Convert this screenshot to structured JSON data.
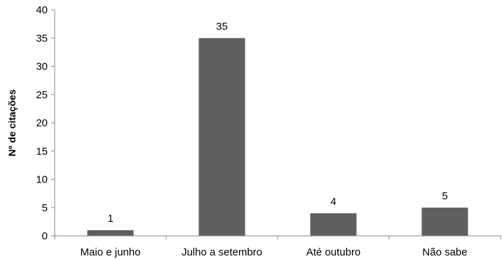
{
  "chart_data": {
    "type": "bar",
    "title": "",
    "xlabel": "",
    "ylabel": "Nº de citações",
    "ylim": [
      0,
      40
    ],
    "yticks": [
      0,
      5,
      10,
      15,
      20,
      25,
      30,
      35,
      40
    ],
    "categories": [
      "Maio e junho",
      "Julho a setembro",
      "Até outubro",
      "Não sabe"
    ],
    "values": [
      1,
      35,
      4,
      5
    ],
    "data_labels": [
      "1",
      "35",
      "4",
      "5"
    ],
    "grid": false,
    "legend": "none",
    "bar_color": "#5f5f5f",
    "axis_color": "#868686"
  }
}
